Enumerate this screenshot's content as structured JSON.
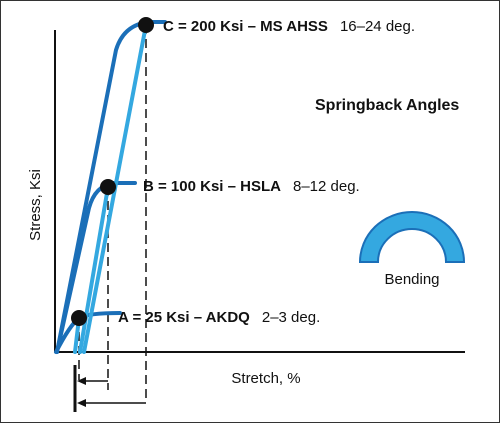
{
  "chart_data": {
    "type": "line",
    "title": "Springback Angles",
    "xlabel": "Stretch, %",
    "ylabel": "Stress, Ksi",
    "grid": false,
    "points": [
      {
        "id": "A",
        "name": "A = 25 Ksi – AKDQ",
        "yield_ksi": 25,
        "springback": "2–3 deg."
      },
      {
        "id": "B",
        "name": "B = 100 Ksi – HSLA",
        "yield_ksi": 100,
        "springback": "8–12 deg."
      },
      {
        "id": "C",
        "name": "C = 200 Ksi – MS AHSS",
        "yield_ksi": 200,
        "springback": "16–24 deg."
      }
    ],
    "inset": {
      "label": "Bending",
      "icon": "bending-arc-icon"
    }
  },
  "colors": {
    "curve_dark": "#1b6fb8",
    "unload_light": "#34a8e0",
    "marker": "#111111",
    "border": "#333333"
  }
}
